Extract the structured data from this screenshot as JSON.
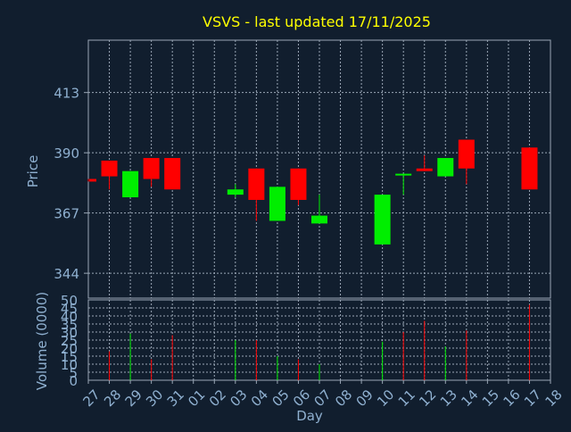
{
  "chart_data": [
    {
      "type": "candlestick",
      "title": "VSVS - last updated 17/11/2025",
      "ylabel": "Price",
      "yticks": [
        344,
        367,
        390,
        413
      ],
      "ylim": [
        334.5,
        433
      ],
      "categories": [
        "27",
        "28",
        "29",
        "30",
        "31",
        "01",
        "02",
        "03",
        "04",
        "05",
        "06",
        "07",
        "08",
        "09",
        "10",
        "11",
        "12",
        "13",
        "14",
        "15",
        "16",
        "17",
        "18"
      ],
      "candles": [
        {
          "day": "27",
          "open": 380,
          "close": 379,
          "high": 380,
          "low": 379
        },
        {
          "day": "28",
          "open": 387,
          "close": 381,
          "high": 387,
          "low": 376
        },
        {
          "day": "29",
          "open": 373,
          "close": 383,
          "high": 383,
          "low": 373
        },
        {
          "day": "30",
          "open": 388,
          "close": 380,
          "high": 388,
          "low": 377
        },
        {
          "day": "31",
          "open": 388,
          "close": 376,
          "high": 388,
          "low": 376
        },
        {
          "day": "03",
          "open": 374,
          "close": 376,
          "high": 378,
          "low": 373
        },
        {
          "day": "04",
          "open": 384,
          "close": 372,
          "high": 384,
          "low": 364
        },
        {
          "day": "05",
          "open": 364,
          "close": 377,
          "high": 377,
          "low": 364
        },
        {
          "day": "06",
          "open": 384,
          "close": 372,
          "high": 384,
          "low": 370
        },
        {
          "day": "07",
          "open": 363,
          "close": 366,
          "high": 374,
          "low": 363
        },
        {
          "day": "10",
          "open": 355,
          "close": 374,
          "high": 374,
          "low": 355
        },
        {
          "day": "11",
          "open": 382,
          "close": 382,
          "high": 382,
          "low": 374
        },
        {
          "day": "12",
          "open": 384,
          "close": 383,
          "high": 389,
          "low": 383
        },
        {
          "day": "13",
          "open": 381,
          "close": 388,
          "high": 388,
          "low": 381
        },
        {
          "day": "14",
          "open": 395,
          "close": 384,
          "high": 395,
          "low": 378
        },
        {
          "day": "17",
          "open": 392,
          "close": 376,
          "high": 392,
          "low": 376
        }
      ],
      "up_color": "#00ee00",
      "down_color": "#ff0000"
    },
    {
      "type": "bar",
      "ylabel": "Volume (0000)",
      "xlabel": "Day",
      "yticks": [
        0,
        5,
        10,
        15,
        20,
        25,
        30,
        35,
        40,
        45,
        50
      ],
      "ylim": [
        0,
        50
      ],
      "categories": [
        "27",
        "28",
        "29",
        "30",
        "31",
        "01",
        "02",
        "03",
        "04",
        "05",
        "06",
        "07",
        "08",
        "09",
        "10",
        "11",
        "12",
        "13",
        "14",
        "15",
        "16",
        "17",
        "18"
      ],
      "bars": [
        {
          "day": "28",
          "value": 18,
          "direction": "down"
        },
        {
          "day": "29",
          "value": 29,
          "direction": "up"
        },
        {
          "day": "30",
          "value": 13,
          "direction": "down"
        },
        {
          "day": "31",
          "value": 28,
          "direction": "down"
        },
        {
          "day": "03",
          "value": 25,
          "direction": "up"
        },
        {
          "day": "04",
          "value": 25,
          "direction": "down"
        },
        {
          "day": "05",
          "value": 15,
          "direction": "up"
        },
        {
          "day": "06",
          "value": 13,
          "direction": "down"
        },
        {
          "day": "07",
          "value": 10,
          "direction": "up"
        },
        {
          "day": "10",
          "value": 24,
          "direction": "up"
        },
        {
          "day": "11",
          "value": 30,
          "direction": "down"
        },
        {
          "day": "12",
          "value": 37,
          "direction": "down"
        },
        {
          "day": "13",
          "value": 21,
          "direction": "up"
        },
        {
          "day": "14",
          "value": 31,
          "direction": "down"
        },
        {
          "day": "17",
          "value": 47,
          "direction": "down"
        }
      ]
    }
  ],
  "colors": {
    "background": "#111e2e",
    "title": "#ffff00",
    "axis_text": "#8fb0d0",
    "grid": "#9aa7b6"
  }
}
